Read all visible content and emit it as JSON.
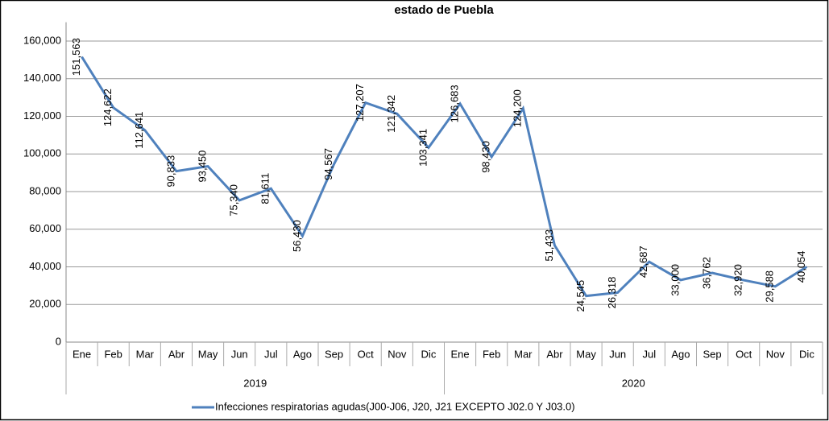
{
  "chart_data": {
    "type": "line",
    "title": "estado de Puebla",
    "categories": [
      "Ene",
      "Feb",
      "Mar",
      "Abr",
      "May",
      "Jun",
      "Jul",
      "Ago",
      "Sep",
      "Oct",
      "Nov",
      "Dic",
      "Ene",
      "Feb",
      "Mar",
      "Abr",
      "May",
      "Jun",
      "Jul",
      "Ago",
      "Sep",
      "Oct",
      "Nov",
      "Dic"
    ],
    "year_groups": [
      "2019",
      "2020"
    ],
    "series": [
      {
        "name": "Infecciones respiratorias agudas(J00-J06, J20, J21 EXCEPTO J02.0 Y J03.0)",
        "color": "#4f81bd",
        "values": [
          151563,
          124622,
          112641,
          90833,
          93450,
          75340,
          81611,
          56430,
          94567,
          127207,
          121342,
          103341,
          126683,
          98430,
          124200,
          51433,
          24545,
          26318,
          42687,
          33000,
          36762,
          32920,
          29588,
          40054
        ],
        "value_labels": [
          "151,563",
          "124,622",
          "112,641",
          "90,833",
          "93,450",
          "75,340",
          "81,611",
          "56,430",
          "94,567",
          "127,207",
          "121,342",
          "103,341",
          "126,683",
          "98,430",
          "124,200",
          "51,433",
          "24,545",
          "26,318",
          "42,687",
          "33,000",
          "36,762",
          "32,920",
          "29,588",
          "40,054"
        ]
      }
    ],
    "ylim": [
      0,
      170000
    ],
    "yticks": [
      0,
      {
        "value": 20000,
        "label": "20,000"
      },
      {
        "value": 40000,
        "label": "40,000"
      },
      {
        "value": 60000,
        "label": "60,000"
      },
      {
        "value": 80000,
        "label": "80,000"
      },
      {
        "value": 100000,
        "label": "100,000"
      },
      {
        "value": 120000,
        "label": "120,000"
      },
      {
        "value": 140000,
        "label": "140,000"
      },
      {
        "value": 160000,
        "label": "160,000"
      }
    ],
    "grid": true,
    "legend": "bottom"
  }
}
